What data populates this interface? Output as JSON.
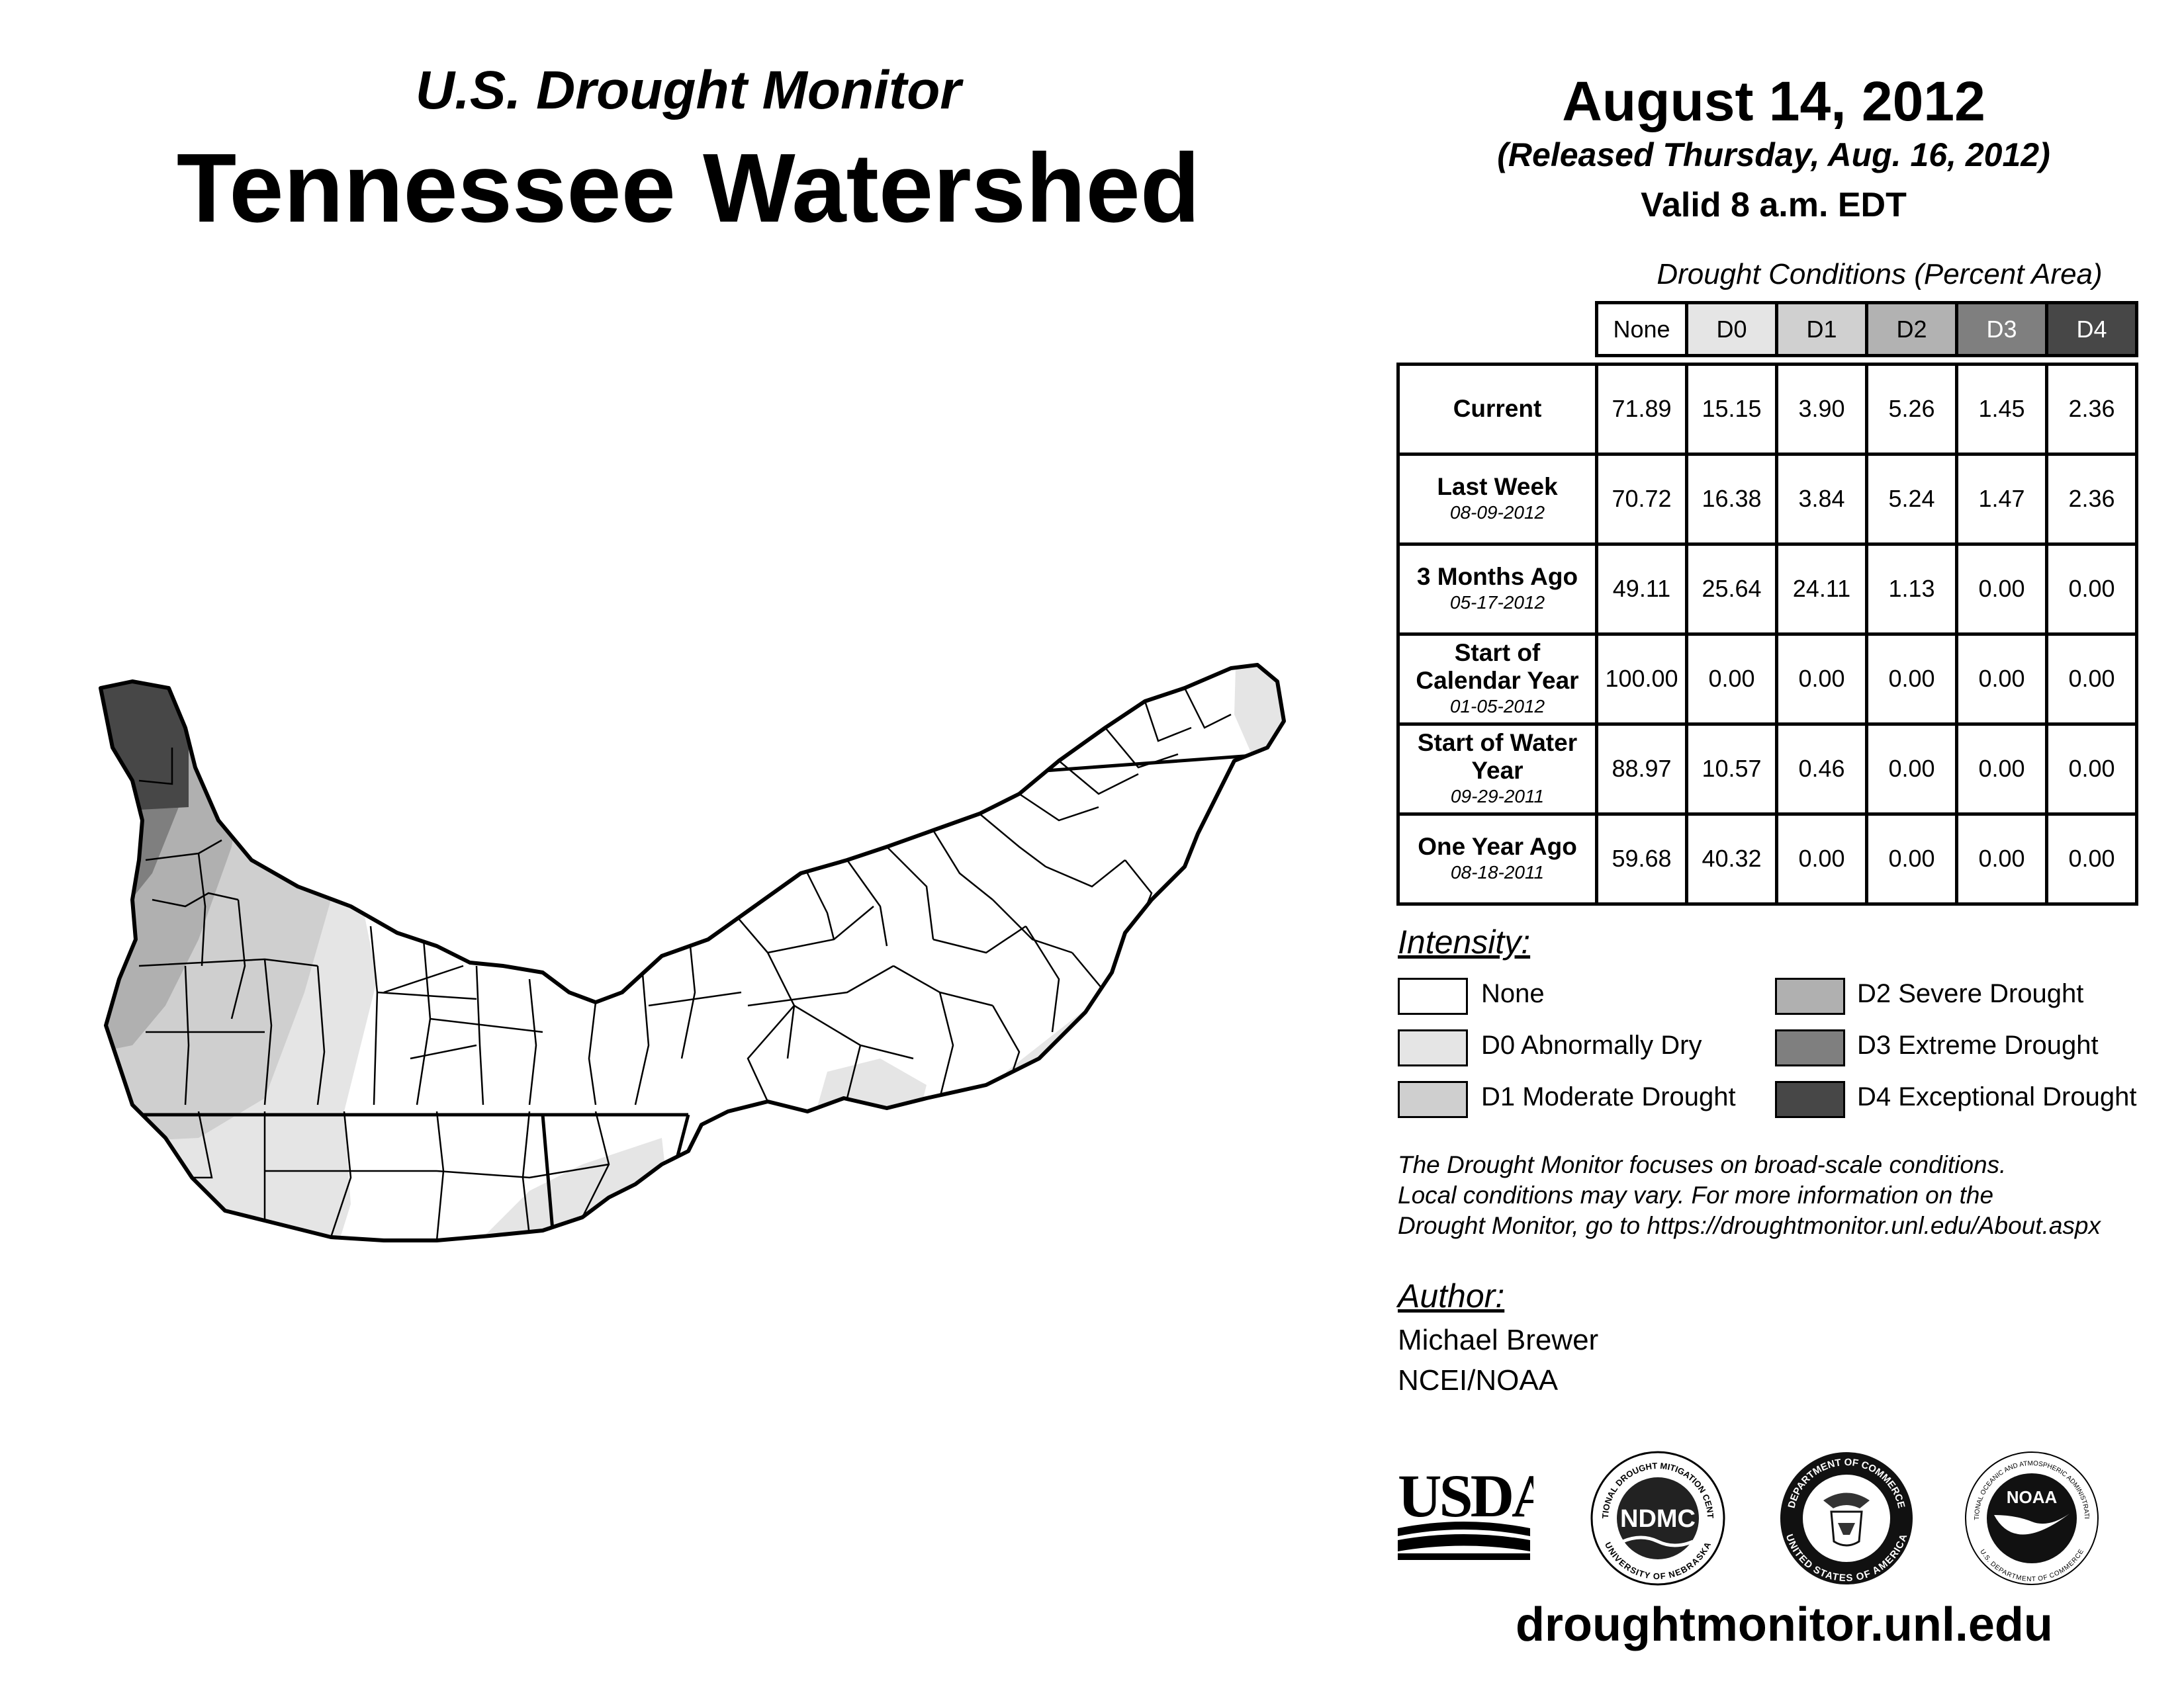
{
  "header": {
    "subtitle": "U.S. Drought Monitor",
    "title": "Tennessee Watershed",
    "date": "August 14, 2012",
    "released": "(Released Thursday, Aug. 16, 2012)",
    "valid": "Valid 8 a.m. EDT"
  },
  "table": {
    "title": "Drought Conditions (Percent Area)",
    "columns": [
      "None",
      "D0",
      "D1",
      "D2",
      "D3",
      "D4"
    ],
    "column_colors": [
      "#ffffff",
      "#e5e5e5",
      "#d0d0d0",
      "#b2b2b2",
      "#7f7f7f",
      "#474747"
    ],
    "rows": [
      {
        "label": "Current",
        "date": "",
        "values": [
          "71.89",
          "15.15",
          "3.90",
          "5.26",
          "1.45",
          "2.36"
        ]
      },
      {
        "label": "Last Week",
        "date": "08-09-2012",
        "values": [
          "70.72",
          "16.38",
          "3.84",
          "5.24",
          "1.47",
          "2.36"
        ]
      },
      {
        "label": "3 Months Ago",
        "date": "05-17-2012",
        "values": [
          "49.11",
          "25.64",
          "24.11",
          "1.13",
          "0.00",
          "0.00"
        ]
      },
      {
        "label": "Start of Calendar Year",
        "date": "01-05-2012",
        "values": [
          "100.00",
          "0.00",
          "0.00",
          "0.00",
          "0.00",
          "0.00"
        ]
      },
      {
        "label": "Start of Water Year",
        "date": "09-29-2011",
        "values": [
          "88.97",
          "10.57",
          "0.46",
          "0.00",
          "0.00",
          "0.00"
        ]
      },
      {
        "label": "One Year Ago",
        "date": "08-18-2011",
        "values": [
          "59.68",
          "40.32",
          "0.00",
          "0.00",
          "0.00",
          "0.00"
        ]
      }
    ]
  },
  "legend": {
    "title": "Intensity:",
    "items": [
      {
        "label": "None",
        "color": "#ffffff"
      },
      {
        "label": "D0 Abnormally Dry",
        "color": "#e5e5e5"
      },
      {
        "label": "D1 Moderate Drought",
        "color": "#cfcfcf"
      },
      {
        "label": "D2 Severe Drought",
        "color": "#b0b0b0"
      },
      {
        "label": "D3 Extreme Drought",
        "color": "#7f7f7f"
      },
      {
        "label": "D4 Exceptional Drought",
        "color": "#474747"
      }
    ]
  },
  "note": {
    "line1": "The Drought Monitor focuses on broad-scale conditions.",
    "line2": "Local conditions may vary. For more information on the",
    "line3": "Drought Monitor, go to https://droughtmonitor.unl.edu/About.aspx"
  },
  "author": {
    "title": "Author:",
    "name": "Michael Brewer",
    "org": "NCEI/NOAA"
  },
  "logos": {
    "usda": "USDA",
    "ndmc": "NDMC",
    "ndmc_ring_top": "NATIONAL DROUGHT MITIGATION CENTER",
    "ndmc_ring_bottom": "UNIVERSITY OF NEBRASKA",
    "doc_ring_top": "DEPARTMENT OF COMMERCE",
    "doc_ring_bottom": "UNITED STATES OF AMERICA",
    "noaa": "NOAA",
    "noaa_ring_top": "NATIONAL OCEANIC AND ATMOSPHERIC ADMINISTRATION",
    "noaa_ring_bottom": "U.S. DEPARTMENT OF COMMERCE"
  },
  "url": "droughtmonitor.unl.edu"
}
